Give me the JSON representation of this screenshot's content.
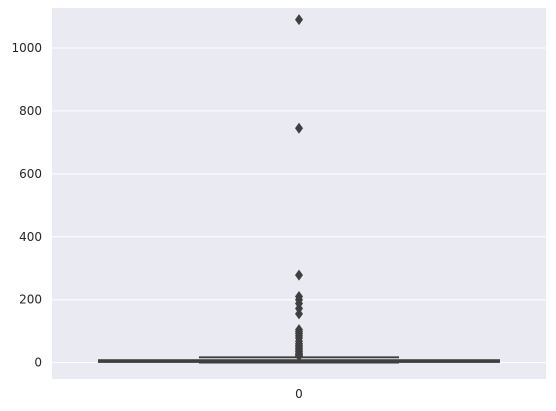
{
  "chart_data": {
    "type": "box",
    "title": "",
    "xlabel": "",
    "ylabel": "",
    "categories": [
      "0"
    ],
    "ylim": [
      -52,
      1127
    ],
    "y_ticks": [
      0,
      200,
      400,
      600,
      800,
      1000
    ],
    "grid": true,
    "style": "seaborn-darkgrid",
    "box": {
      "q1": 2,
      "median": 4,
      "q3": 8,
      "whisker_low": 0,
      "whisker_high": 17,
      "outliers": [
        1090,
        745,
        278,
        210,
        200,
        188,
        172,
        155,
        105,
        98,
        92,
        85,
        78,
        68,
        60,
        55,
        50,
        45,
        40,
        35,
        30,
        27,
        24,
        21
      ]
    },
    "colors": {
      "plot_background": "#eaeaf2",
      "grid": "#ffffff",
      "box_fill": "#3274a1",
      "box_edge": "#3f3f3f",
      "outlier": "#3f3f3f",
      "tick_text": "#262626"
    }
  }
}
